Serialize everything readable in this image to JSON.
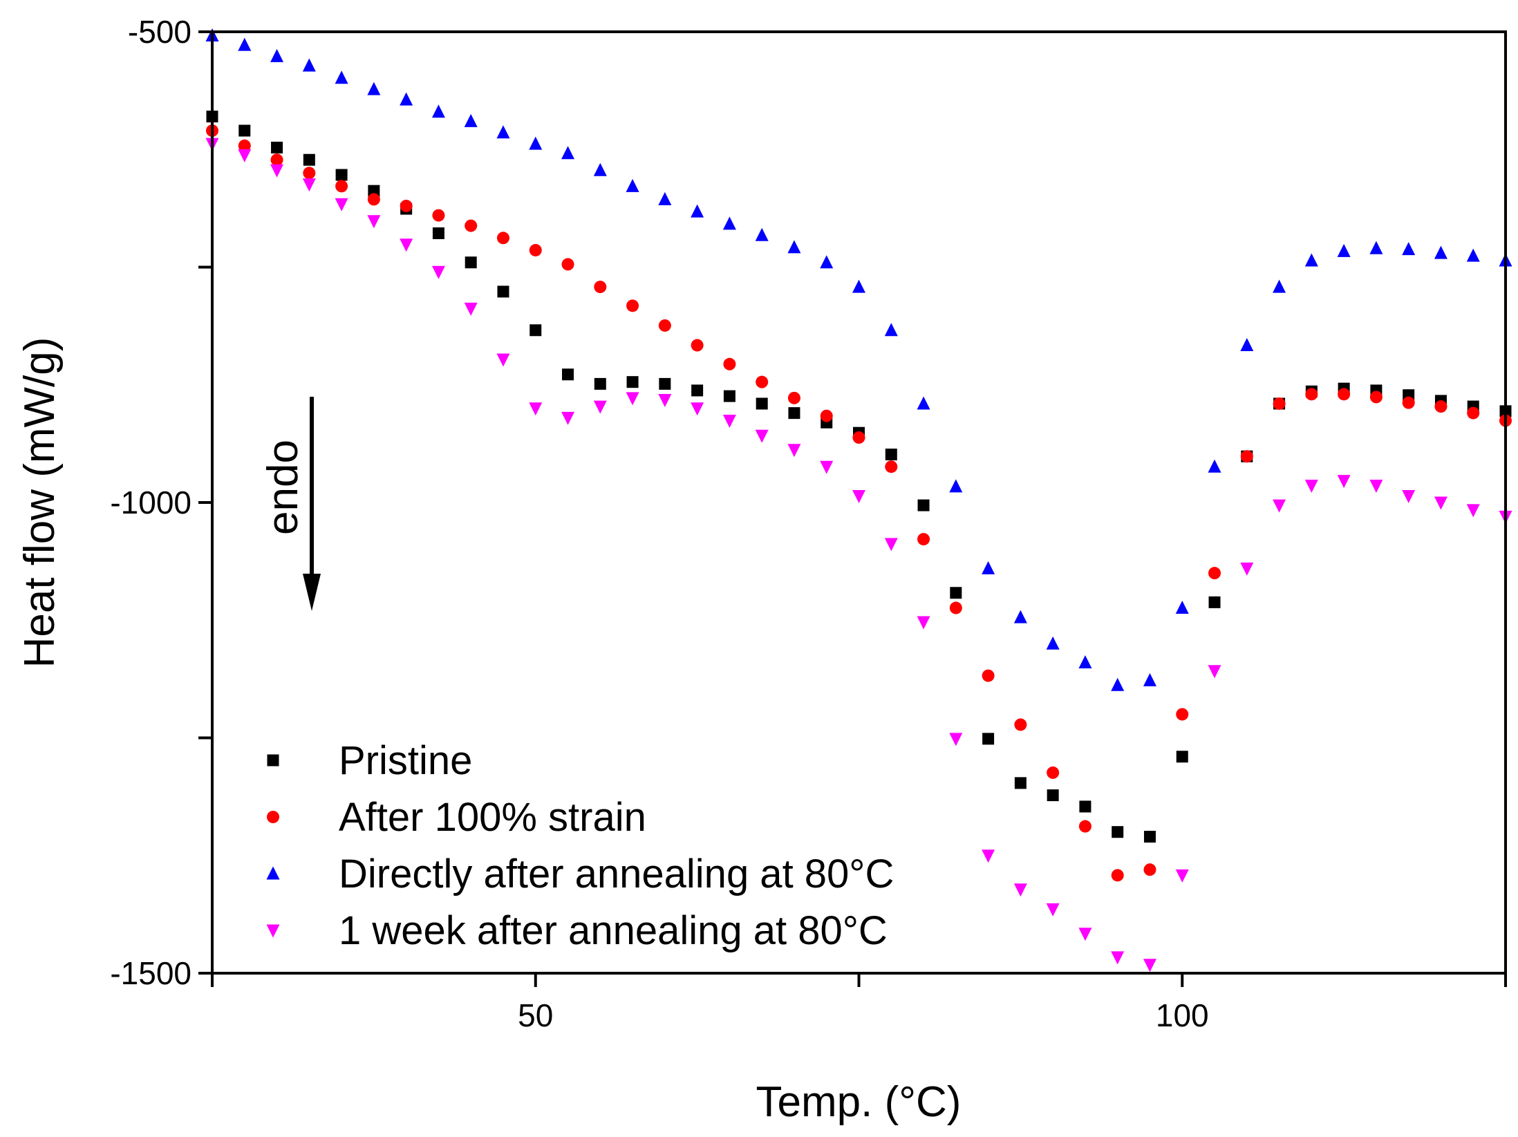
{
  "chart_data": {
    "type": "scatter",
    "title": "",
    "xlabel": "Temp. (°C)",
    "ylabel": "Heat flow (mW/g)",
    "xlim": [
      25,
      125
    ],
    "ylim": [
      -1500,
      -500
    ],
    "x_ticks": [
      25,
      50,
      75,
      100,
      125
    ],
    "x_tick_labels": [
      "",
      "50",
      "",
      "100",
      ""
    ],
    "y_ticks": [
      -500,
      -750,
      -1000,
      -1250,
      -1500
    ],
    "y_tick_labels": [
      "-500",
      "",
      "-1000",
      "",
      "-1500"
    ],
    "grid": false,
    "legend_position": "bottom-left",
    "annotation": {
      "text": "endo",
      "arrow": "down"
    },
    "x": [
      25,
      27.5,
      30,
      32.5,
      35,
      37.5,
      40,
      42.5,
      45,
      47.5,
      50,
      52.5,
      55,
      57.5,
      60,
      62.5,
      65,
      67.5,
      70,
      72.5,
      75,
      77.5,
      80,
      82.5,
      85,
      87.5,
      90,
      92.5,
      95,
      97.5,
      100,
      102.5,
      105,
      107.5,
      110,
      112.5,
      115,
      117.5,
      120,
      122.5,
      125
    ],
    "series": [
      {
        "name": "Pristine",
        "marker": "square",
        "color": "#000000",
        "values": [
          -590,
          -605,
          -623,
          -636,
          -652,
          -669,
          -688,
          -714,
          -745,
          -776,
          -817,
          -864,
          -874,
          -872,
          -874,
          -881,
          -887,
          -895,
          -905,
          -915,
          -926,
          -949,
          -1003,
          -1096,
          -1251,
          -1298,
          -1311,
          -1323,
          -1350,
          -1355,
          -1270,
          -1106,
          -951,
          -895,
          -882,
          -879,
          -881,
          -886,
          -892,
          -898,
          -903
        ]
      },
      {
        "name": "After 100% strain",
        "marker": "circle",
        "color": "#ff0000",
        "values": [
          -605,
          -621,
          -636,
          -650,
          -664,
          -678,
          -685,
          -695,
          -706,
          -719,
          -732,
          -747,
          -771,
          -791,
          -812,
          -833,
          -853,
          -872,
          -889,
          -908,
          -931,
          -962,
          -1039,
          -1112,
          -1184,
          -1236,
          -1287,
          -1344,
          -1396,
          -1390,
          -1225,
          -1075,
          -951,
          -895,
          -885,
          -885,
          -888,
          -894,
          -898,
          -905,
          -913
        ]
      },
      {
        "name": "Directly after annealing at 80°C",
        "marker": "triangle-up",
        "color": "#0000ff",
        "values": [
          -504,
          -514,
          -526,
          -536,
          -549,
          -561,
          -572,
          -585,
          -595,
          -607,
          -619,
          -629,
          -647,
          -664,
          -678,
          -691,
          -704,
          -716,
          -729,
          -745,
          -771,
          -817,
          -895,
          -983,
          -1070,
          -1122,
          -1150,
          -1170,
          -1194,
          -1189,
          -1112,
          -962,
          -833,
          -771,
          -743,
          -733,
          -730,
          -731,
          -735,
          -738,
          -743
        ]
      },
      {
        "name": "1 week after annealing at 80°C",
        "marker": "triangle-down",
        "color": "#ff00ff",
        "values": [
          -619,
          -631,
          -647,
          -662,
          -683,
          -701,
          -726,
          -755,
          -794,
          -848,
          -900,
          -910,
          -898,
          -889,
          -891,
          -900,
          -913,
          -929,
          -944,
          -962,
          -993,
          -1044,
          -1127,
          -1251,
          -1375,
          -1411,
          -1432,
          -1458,
          -1483,
          -1491,
          -1396,
          -1179,
          -1070,
          -1003,
          -982,
          -977,
          -982,
          -993,
          -1000,
          -1008,
          -1015
        ]
      }
    ]
  }
}
